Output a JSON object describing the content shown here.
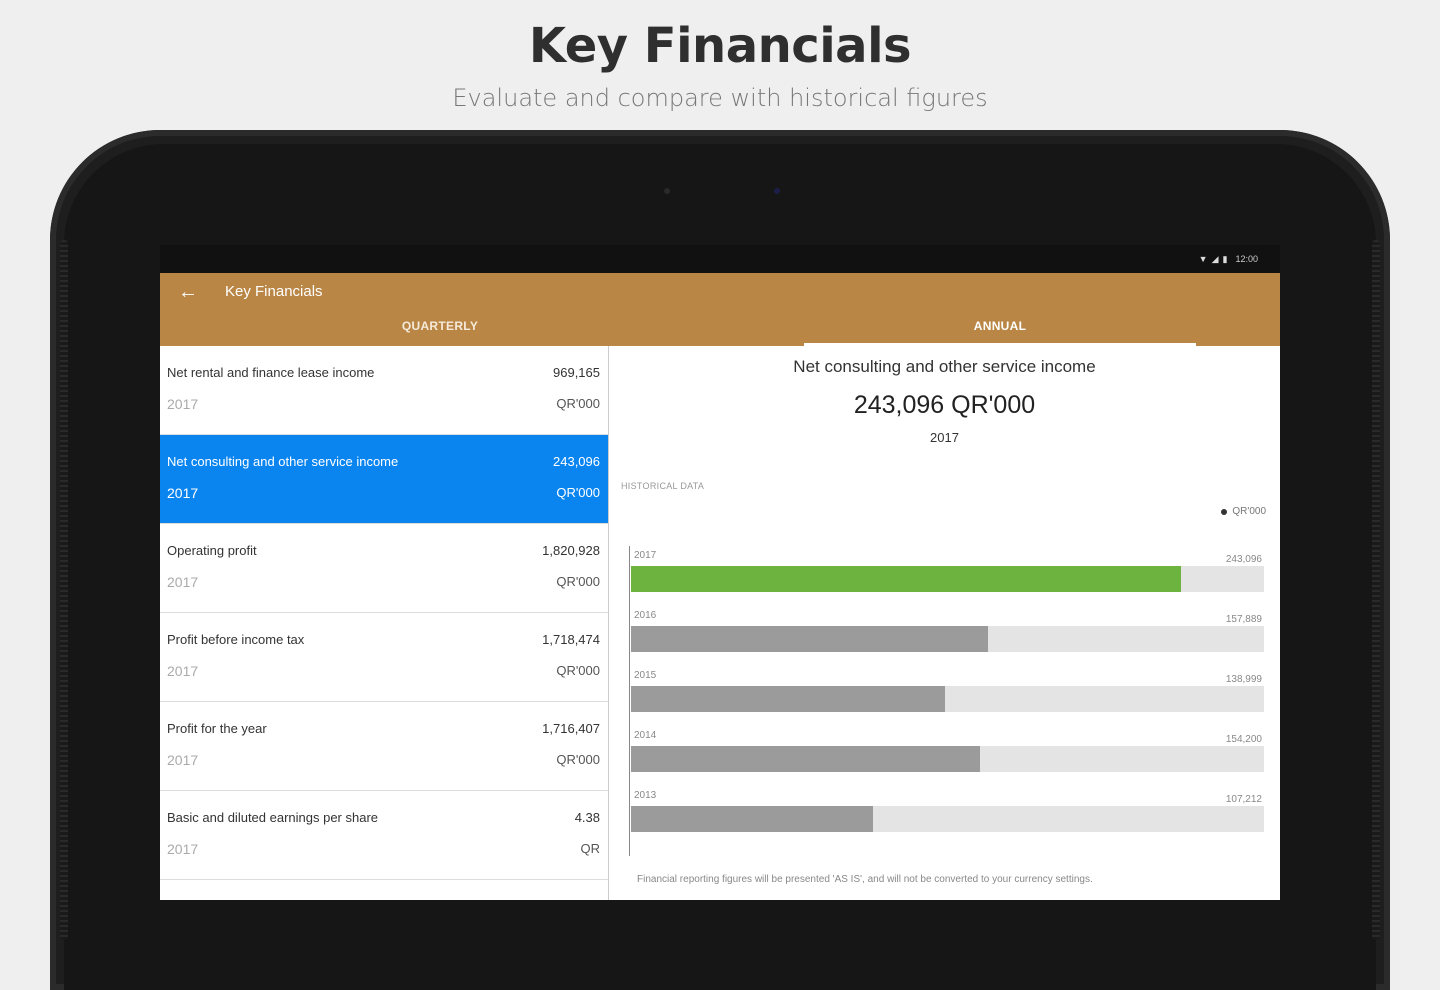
{
  "promo": {
    "title": "Key Financials",
    "subtitle": "Evaluate and compare with historical figures"
  },
  "statusbar": {
    "time": "12:00"
  },
  "appbar": {
    "title": "Key Financials",
    "tabs": [
      {
        "label": "QUARTERLY",
        "active": false
      },
      {
        "label": "ANNUAL",
        "active": true
      }
    ]
  },
  "list": [
    {
      "name": "Net rental and finance lease income",
      "year": "2017",
      "value": "969,165",
      "unit": "QR'000",
      "selected": false
    },
    {
      "name": "Net consulting and other service income",
      "year": "2017",
      "value": "243,096",
      "unit": "QR'000",
      "selected": true
    },
    {
      "name": "Operating profit",
      "year": "2017",
      "value": "1,820,928",
      "unit": "QR'000",
      "selected": false
    },
    {
      "name": "Profit before income tax",
      "year": "2017",
      "value": "1,718,474",
      "unit": "QR'000",
      "selected": false
    },
    {
      "name": "Profit for the year",
      "year": "2017",
      "value": "1,716,407",
      "unit": "QR'000",
      "selected": false
    },
    {
      "name": "Basic and diluted earnings per share",
      "year": "2017",
      "value": "4.38",
      "unit": "QR",
      "selected": false
    }
  ],
  "detail": {
    "title": "Net consulting and other service income",
    "value": "243,096 QR'000",
    "year": "2017",
    "historical_label": "HISTORICAL DATA",
    "legend": "QR'000",
    "footnote": "Financial reporting figures will be presented 'AS IS', and will not be converted to your currency settings."
  },
  "chart_data": {
    "type": "bar",
    "orientation": "horizontal",
    "categories": [
      "2017",
      "2016",
      "2015",
      "2014",
      "2013"
    ],
    "values": [
      243096,
      157889,
      138999,
      154200,
      107212
    ],
    "value_labels": [
      "243,096",
      "157,889",
      "138,999",
      "154,200",
      "107,212"
    ],
    "highlight": "2017",
    "colors": {
      "highlight": "#6cb33f",
      "default": "#9b9b9b",
      "track": "#e4e4e4"
    },
    "legend": [
      "QR'000"
    ],
    "xlim": [
      0,
      280000
    ]
  },
  "colors": {
    "appbar": "#b98646",
    "selected": "#0a85f0"
  }
}
